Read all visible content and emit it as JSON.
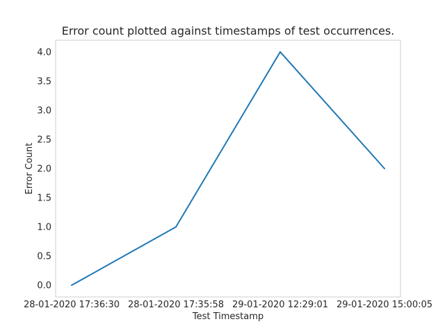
{
  "chart_data": {
    "type": "line",
    "title": "Error count plotted against timestamps of test occurrences.",
    "xlabel": "Test Timestamp",
    "ylabel": "Error Count",
    "categories": [
      "28-01-2020 17:36:30",
      "28-01-2020 17:35:58",
      "29-01-2020 12:29:01",
      "29-01-2020 15:00:05"
    ],
    "series": [
      {
        "values": [
          0,
          1,
          4,
          2
        ]
      }
    ],
    "ylim": [
      -0.2,
      4.2
    ],
    "yticks": [
      0.0,
      0.5,
      1.0,
      1.5,
      2.0,
      2.5,
      3.0,
      3.5,
      4.0
    ],
    "ytick_labels": [
      "0.0",
      "0.5",
      "1.0",
      "1.5",
      "2.0",
      "2.5",
      "3.0",
      "3.5",
      "4.0"
    ],
    "grid": false,
    "legend": "none",
    "colors": {
      "line": "#1f77b4",
      "frame": "#cccccc",
      "text": "#262626"
    }
  }
}
